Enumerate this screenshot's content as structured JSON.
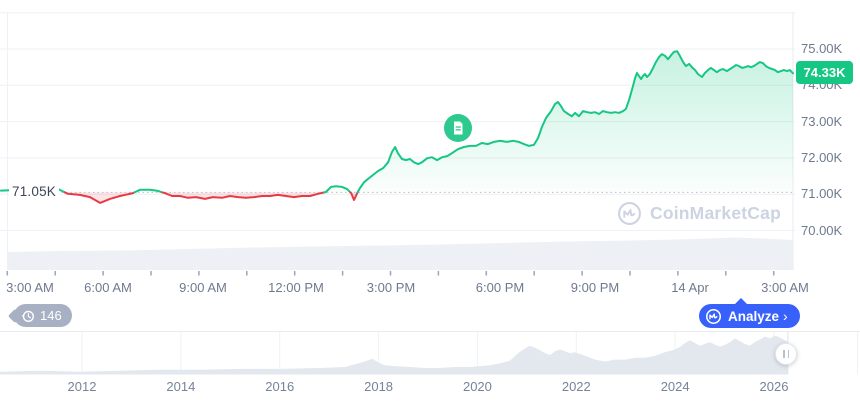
{
  "colors": {
    "green": "#16c784",
    "red": "#ea3943",
    "blue": "#3861fb",
    "badge_gray": "#a8b1c4",
    "news_green": "#2ec98f",
    "watermark_gray": "#ccd3e2",
    "gridline": "#eef1f5",
    "volume_fill": "#edf0f5",
    "nav_fill": "#e3e8ef",
    "axis_text": "#6e7a8f"
  },
  "main_chart": {
    "baseline_label": "71.05K",
    "price_badge": "74.33K",
    "y_labels": [
      "75.00K",
      "74.00K",
      "73.00K",
      "72.00K",
      "71.00K",
      "70.00K"
    ],
    "x_labels": [
      "3:00 AM",
      "6:00 AM",
      "9:00 AM",
      "12:00 PM",
      "3:00 PM",
      "6:00 PM",
      "9:00 PM",
      "14 Apr",
      "3:00 AM"
    ],
    "watermark": "CoinMarketCap"
  },
  "controls": {
    "history_count": "146",
    "analyze_label": "Analyze",
    "analyze_chevron": "›"
  },
  "navigator_labels": [
    "2012",
    "2014",
    "2016",
    "2018",
    "2020",
    "2022",
    "2024",
    "2026"
  ],
  "icons": {
    "news_marker": "news-document-icon",
    "history": "history-clock-icon",
    "logo": "coinmarketcap-logo-icon",
    "handle": "pause-drag-handle-icon"
  },
  "chart_data": {
    "type": "line",
    "title": "Bitcoin price (intraday, 13-14 Apr)",
    "x_unit": "hours since 3:00 AM",
    "y_unit": "USD thousands",
    "ylim": [
      69.5,
      76
    ],
    "baseline_value": 71.05,
    "last_value": 74.33,
    "x_tick_labels": [
      "3:00 AM",
      "6:00 AM",
      "9:00 AM",
      "12:00 PM",
      "3:00 PM",
      "6:00 PM",
      "9:00 PM",
      "14 Apr",
      "3:00 AM"
    ],
    "y_tick_values": [
      75,
      74,
      73,
      72,
      71,
      70
    ],
    "points": [
      [
        -0.92,
        71.1
      ],
      [
        0.85,
        71.16
      ],
      [
        1.2,
        71.01
      ],
      [
        1.58,
        70.98
      ],
      [
        1.9,
        70.92
      ],
      [
        2.22,
        70.76
      ],
      [
        2.53,
        70.87
      ],
      [
        2.85,
        70.95
      ],
      [
        3.26,
        71.03
      ],
      [
        3.48,
        71.12
      ],
      [
        3.8,
        71.12
      ],
      [
        4.05,
        71.09
      ],
      [
        4.27,
        71.03
      ],
      [
        4.5,
        70.95
      ],
      [
        4.75,
        70.95
      ],
      [
        5.0,
        70.9
      ],
      [
        5.26,
        70.92
      ],
      [
        5.54,
        70.87
      ],
      [
        5.79,
        70.92
      ],
      [
        6.08,
        70.9
      ],
      [
        6.33,
        70.95
      ],
      [
        6.59,
        70.92
      ],
      [
        6.84,
        70.9
      ],
      [
        7.09,
        70.92
      ],
      [
        7.35,
        70.95
      ],
      [
        7.6,
        70.95
      ],
      [
        7.85,
        70.98
      ],
      [
        8.11,
        70.95
      ],
      [
        8.36,
        70.92
      ],
      [
        8.61,
        70.95
      ],
      [
        8.87,
        70.95
      ],
      [
        9.12,
        71.01
      ],
      [
        9.37,
        71.06
      ],
      [
        9.53,
        71.2
      ],
      [
        9.69,
        71.22
      ],
      [
        9.88,
        71.2
      ],
      [
        10.04,
        71.14
      ],
      [
        10.17,
        71.03
      ],
      [
        10.26,
        70.84
      ],
      [
        10.35,
        71.01
      ],
      [
        10.45,
        71.17
      ],
      [
        10.58,
        71.33
      ],
      [
        10.7,
        71.42
      ],
      [
        10.86,
        71.53
      ],
      [
        11.02,
        71.64
      ],
      [
        11.18,
        71.72
      ],
      [
        11.34,
        71.88
      ],
      [
        11.46,
        72.16
      ],
      [
        11.56,
        72.3
      ],
      [
        11.65,
        72.13
      ],
      [
        11.78,
        71.97
      ],
      [
        11.91,
        71.94
      ],
      [
        12.03,
        71.97
      ],
      [
        12.16,
        71.88
      ],
      [
        12.29,
        71.83
      ],
      [
        12.41,
        71.88
      ],
      [
        12.57,
        71.99
      ],
      [
        12.73,
        72.02
      ],
      [
        12.89,
        71.94
      ],
      [
        13.05,
        72.02
      ],
      [
        13.21,
        72.05
      ],
      [
        13.36,
        72.13
      ],
      [
        13.55,
        72.24
      ],
      [
        13.74,
        72.3
      ],
      [
        13.93,
        72.33
      ],
      [
        14.12,
        72.33
      ],
      [
        14.31,
        72.41
      ],
      [
        14.5,
        72.38
      ],
      [
        14.69,
        72.44
      ],
      [
        14.88,
        72.47
      ],
      [
        15.1,
        72.44
      ],
      [
        15.29,
        72.47
      ],
      [
        15.48,
        72.44
      ],
      [
        15.64,
        72.38
      ],
      [
        15.8,
        72.33
      ],
      [
        15.96,
        72.36
      ],
      [
        16.09,
        72.55
      ],
      [
        16.21,
        72.85
      ],
      [
        16.34,
        73.1
      ],
      [
        16.5,
        73.29
      ],
      [
        16.62,
        73.48
      ],
      [
        16.72,
        73.54
      ],
      [
        16.81,
        73.43
      ],
      [
        16.91,
        73.29
      ],
      [
        17.04,
        73.21
      ],
      [
        17.16,
        73.15
      ],
      [
        17.26,
        73.24
      ],
      [
        17.38,
        73.15
      ],
      [
        17.51,
        73.29
      ],
      [
        17.64,
        73.26
      ],
      [
        17.76,
        73.24
      ],
      [
        17.89,
        73.26
      ],
      [
        18.02,
        73.21
      ],
      [
        18.14,
        73.29
      ],
      [
        18.27,
        73.26
      ],
      [
        18.4,
        73.24
      ],
      [
        18.52,
        73.26
      ],
      [
        18.65,
        73.24
      ],
      [
        18.78,
        73.29
      ],
      [
        18.87,
        73.35
      ],
      [
        18.97,
        73.6
      ],
      [
        19.06,
        73.87
      ],
      [
        19.16,
        74.2
      ],
      [
        19.22,
        74.34
      ],
      [
        19.28,
        74.26
      ],
      [
        19.35,
        74.17
      ],
      [
        19.41,
        74.26
      ],
      [
        19.47,
        74.31
      ],
      [
        19.54,
        74.23
      ],
      [
        19.63,
        74.31
      ],
      [
        19.73,
        74.48
      ],
      [
        19.82,
        74.64
      ],
      [
        19.92,
        74.78
      ],
      [
        20.01,
        74.86
      ],
      [
        20.11,
        74.81
      ],
      [
        20.2,
        74.72
      ],
      [
        20.3,
        74.83
      ],
      [
        20.39,
        74.92
      ],
      [
        20.49,
        74.94
      ],
      [
        20.58,
        74.81
      ],
      [
        20.68,
        74.64
      ],
      [
        20.77,
        74.53
      ],
      [
        20.87,
        74.59
      ],
      [
        20.96,
        74.5
      ],
      [
        21.06,
        74.42
      ],
      [
        21.15,
        74.31
      ],
      [
        21.28,
        74.23
      ],
      [
        21.37,
        74.34
      ],
      [
        21.47,
        74.42
      ],
      [
        21.56,
        74.48
      ],
      [
        21.66,
        74.42
      ],
      [
        21.75,
        74.36
      ],
      [
        21.85,
        74.42
      ],
      [
        21.94,
        74.45
      ],
      [
        22.07,
        74.39
      ],
      [
        22.17,
        74.45
      ],
      [
        22.26,
        74.5
      ],
      [
        22.36,
        74.56
      ],
      [
        22.45,
        74.53
      ],
      [
        22.55,
        74.48
      ],
      [
        22.64,
        74.5
      ],
      [
        22.74,
        74.53
      ],
      [
        22.83,
        74.5
      ],
      [
        22.92,
        74.53
      ],
      [
        23.02,
        74.59
      ],
      [
        23.11,
        74.64
      ],
      [
        23.21,
        74.61
      ],
      [
        23.3,
        74.53
      ],
      [
        23.4,
        74.48
      ],
      [
        23.5,
        74.45
      ],
      [
        23.59,
        74.42
      ],
      [
        23.68,
        74.36
      ],
      [
        23.78,
        74.39
      ],
      [
        23.87,
        74.42
      ],
      [
        23.97,
        74.39
      ],
      [
        24.06,
        74.42
      ],
      [
        24.16,
        74.33
      ]
    ],
    "volume_profile": [
      [
        -0.7,
        18
      ],
      [
        1,
        19
      ],
      [
        3,
        19.5
      ],
      [
        5,
        21
      ],
      [
        7,
        22.5
      ],
      [
        9,
        23.5
      ],
      [
        11,
        24.5
      ],
      [
        13,
        25.5
      ],
      [
        15,
        27
      ],
      [
        17,
        28.5
      ],
      [
        19,
        29.5
      ],
      [
        20.5,
        30.5
      ],
      [
        21.5,
        31.5
      ],
      [
        22.3,
        32.5
      ],
      [
        23.2,
        31.5
      ],
      [
        24.16,
        30
      ]
    ],
    "navigator": {
      "type": "area",
      "x_tick_labels": [
        "2012",
        "2014",
        "2016",
        "2018",
        "2020",
        "2022",
        "2024",
        "2026"
      ],
      "points": [
        [
          2010.34,
          3.6
        ],
        [
          2011.15,
          5.4
        ],
        [
          2011.96,
          3.6
        ],
        [
          2012.77,
          5.4
        ],
        [
          2013.58,
          7.2
        ],
        [
          2014.39,
          7.2
        ],
        [
          2015.2,
          9
        ],
        [
          2016.01,
          9
        ],
        [
          2016.81,
          10.8
        ],
        [
          2017.32,
          12.6
        ],
        [
          2017.72,
          23.4
        ],
        [
          2017.87,
          28.8
        ],
        [
          2017.99,
          21.6
        ],
        [
          2018.13,
          16.2
        ],
        [
          2018.33,
          14.4
        ],
        [
          2018.64,
          12.6
        ],
        [
          2018.94,
          10.8
        ],
        [
          2019.24,
          10.8
        ],
        [
          2019.55,
          12.6
        ],
        [
          2019.85,
          12.6
        ],
        [
          2020.05,
          14.4
        ],
        [
          2020.25,
          16.2
        ],
        [
          2020.46,
          19.8
        ],
        [
          2020.66,
          25.2
        ],
        [
          2020.82,
          39.6
        ],
        [
          2020.96,
          48.6
        ],
        [
          2021.06,
          54
        ],
        [
          2021.16,
          50.4
        ],
        [
          2021.27,
          45
        ],
        [
          2021.37,
          39.6
        ],
        [
          2021.47,
          36
        ],
        [
          2021.57,
          43.2
        ],
        [
          2021.67,
          46.8
        ],
        [
          2021.77,
          43.2
        ],
        [
          2021.87,
          39.6
        ],
        [
          2021.97,
          41.4
        ],
        [
          2022.08,
          37.8
        ],
        [
          2022.18,
          34.2
        ],
        [
          2022.28,
          30.6
        ],
        [
          2022.38,
          27
        ],
        [
          2022.48,
          25.2
        ],
        [
          2022.58,
          23.4
        ],
        [
          2022.78,
          27
        ],
        [
          2022.99,
          27
        ],
        [
          2023.19,
          30.6
        ],
        [
          2023.39,
          30.6
        ],
        [
          2023.59,
          34.2
        ],
        [
          2023.79,
          41.4
        ],
        [
          2024.0,
          46.8
        ],
        [
          2024.1,
          52.2
        ],
        [
          2024.2,
          59.4
        ],
        [
          2024.3,
          64.8
        ],
        [
          2024.4,
          59.4
        ],
        [
          2024.5,
          54
        ],
        [
          2024.6,
          57.6
        ],
        [
          2024.7,
          61.2
        ],
        [
          2024.81,
          55.8
        ],
        [
          2024.91,
          52.2
        ],
        [
          2025.01,
          55.8
        ],
        [
          2025.11,
          61.2
        ],
        [
          2025.21,
          68.4
        ],
        [
          2025.31,
          63
        ],
        [
          2025.41,
          57.6
        ],
        [
          2025.51,
          54
        ],
        [
          2025.61,
          61.2
        ],
        [
          2025.72,
          66.6
        ],
        [
          2025.82,
          72
        ],
        [
          2025.92,
          68.4
        ],
        [
          2026.02,
          73.8
        ],
        [
          2026.12,
          70.2
        ],
        [
          2026.22,
          64.8
        ],
        [
          2026.28,
          61.2
        ]
      ]
    }
  }
}
